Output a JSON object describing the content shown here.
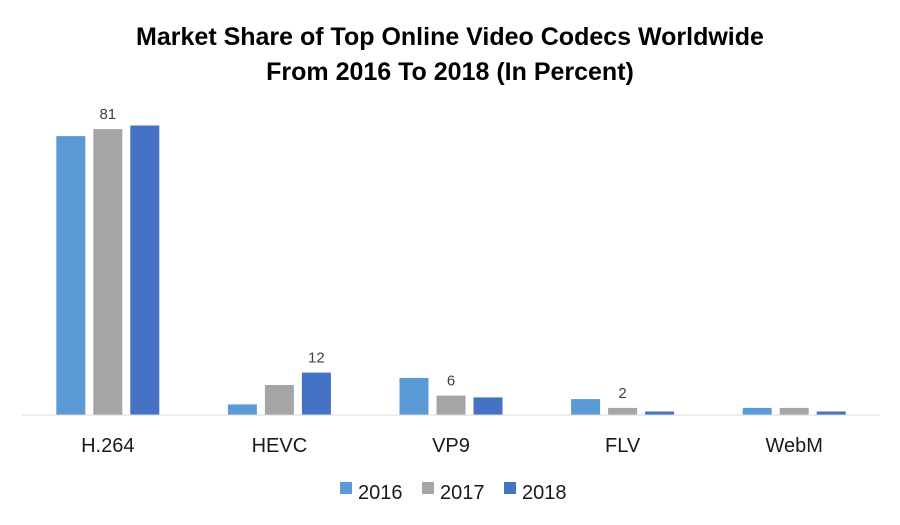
{
  "chart_data": {
    "type": "bar",
    "title": "Market Share of Top Online Video Codecs Worldwide",
    "subtitle": "From 2016 To 2018 (In Percent)",
    "categories": [
      "H.264",
      "HEVC",
      "VP9",
      "FLV",
      "WebM"
    ],
    "series": [
      {
        "name": "2016",
        "color": "#5b9bd5",
        "values": [
          79,
          3,
          10.5,
          4.5,
          2
        ]
      },
      {
        "name": "2017",
        "color": "#a5a5a5",
        "values": [
          81,
          8.5,
          5.5,
          2,
          2
        ]
      },
      {
        "name": "2018",
        "color": "#4472c4",
        "values": [
          82,
          12,
          5,
          1,
          1
        ]
      }
    ],
    "data_labels": [
      {
        "series": 1,
        "category": 0,
        "text": "81"
      },
      {
        "series": 2,
        "category": 1,
        "text": "12"
      },
      {
        "series": 1,
        "category": 2,
        "text": "6"
      },
      {
        "series": 1,
        "category": 3,
        "text": "2"
      }
    ],
    "ylim": [
      0,
      90
    ],
    "grid": false,
    "legend": "bottom"
  }
}
